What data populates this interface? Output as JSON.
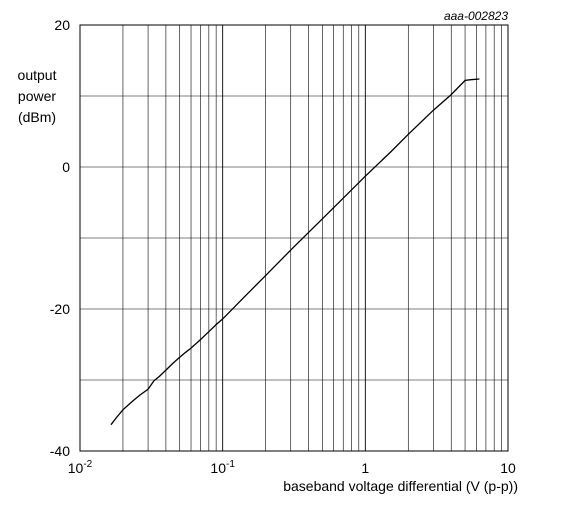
{
  "chart_data": {
    "type": "line",
    "reference_code": "aaa-002823",
    "ylabel_lines": [
      "output",
      "power",
      "(dBm)"
    ],
    "xlabel": "baseband voltage differential (V (p-p))",
    "x_scale": "log",
    "xlim": [
      0.01,
      10
    ],
    "ylim": [
      -40,
      20
    ],
    "grid": true,
    "x_ticks": [
      {
        "base": "10",
        "exp": "-2"
      },
      {
        "base": "10",
        "exp": "-1"
      },
      {
        "base": "1",
        "exp": ""
      },
      {
        "base": "10",
        "exp": ""
      }
    ],
    "y_ticks": [
      "20",
      "0",
      "-20",
      "-40"
    ],
    "series": [
      {
        "color": "#000000",
        "x": [
          0.0165,
          0.018,
          0.02,
          0.023,
          0.026,
          0.03,
          0.033,
          0.036,
          0.04,
          0.045,
          0.05,
          0.055,
          0.06,
          0.07,
          0.08,
          0.09,
          0.1,
          0.15,
          0.2,
          0.3,
          0.5,
          0.7,
          1.0,
          1.5,
          2.0,
          3.0,
          4.0,
          5.0,
          5.5,
          6.3
        ],
        "y": [
          -36.3,
          -35.3,
          -34.2,
          -33.1,
          -32.2,
          -31.3,
          -30.1,
          -29.5,
          -28.6,
          -27.6,
          -26.8,
          -26.1,
          -25.5,
          -24.3,
          -23.2,
          -22.2,
          -21.4,
          -17.8,
          -15.3,
          -11.7,
          -7.3,
          -4.4,
          -1.3,
          2.1,
          4.6,
          8.0,
          10.2,
          12.2,
          12.3,
          12.4
        ]
      }
    ]
  }
}
